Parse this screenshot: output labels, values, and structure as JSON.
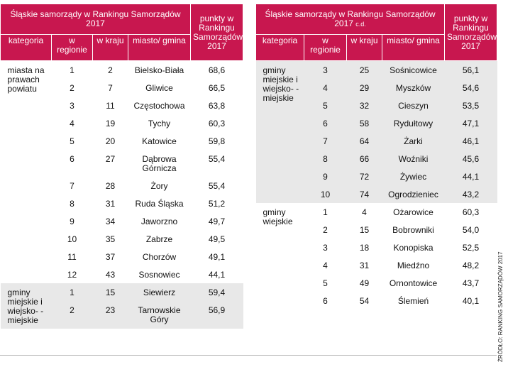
{
  "left": {
    "title": "Śląskie samorządy w Rankingu Samorządów 2017",
    "headers": [
      "kategoria",
      "w regionie",
      "w kraju",
      "miasto/ gmina",
      "punkty w Rankingu Samorządów 2017"
    ],
    "groups": [
      {
        "category": "miasta na prawach powiatu",
        "rows": [
          [
            "1",
            "2",
            "Bielsko-Biała",
            "68,6"
          ],
          [
            "2",
            "7",
            "Gliwice",
            "66,5"
          ],
          [
            "3",
            "11",
            "Częstochowa",
            "63,8"
          ],
          [
            "4",
            "19",
            "Tychy",
            "60,3"
          ],
          [
            "5",
            "20",
            "Katowice",
            "59,8"
          ],
          [
            "6",
            "27",
            "Dąbrowa Górnicza",
            "55,4"
          ],
          [
            "7",
            "28",
            "Żory",
            "55,4"
          ],
          [
            "8",
            "31",
            "Ruda Śląska",
            "51,2"
          ],
          [
            "9",
            "34",
            "Jaworzno",
            "49,7"
          ],
          [
            "10",
            "35",
            "Zabrze",
            "49,5"
          ],
          [
            "11",
            "37",
            "Chorzów",
            "49,1"
          ],
          [
            "12",
            "43",
            "Sosnowiec",
            "44,1"
          ]
        ]
      },
      {
        "category": "gminy miejskie i wiejsko- -miejskie",
        "rows": [
          [
            "1",
            "15",
            "Siewierz",
            "59,4"
          ],
          [
            "2",
            "23",
            "Tarnowskie Góry",
            "56,9"
          ]
        ]
      }
    ]
  },
  "right": {
    "title": "Śląskie samorządy w Rankingu Samorządów 2017",
    "title_note": "c.d.",
    "headers": [
      "kategoria",
      "w regionie",
      "w kraju",
      "miasto/ gmina",
      "punkty w Rankingu Samorządów 2017"
    ],
    "groups": [
      {
        "category": "gminy miejskie i wiejsko- -miejskie",
        "rows": [
          [
            "3",
            "25",
            "Sośnicowice",
            "56,1"
          ],
          [
            "4",
            "29",
            "Myszków",
            "54,6"
          ],
          [
            "5",
            "32",
            "Cieszyn",
            "53,5"
          ],
          [
            "6",
            "58",
            "Rydułtowy",
            "47,1"
          ],
          [
            "7",
            "64",
            "Żarki",
            "46,1"
          ],
          [
            "8",
            "66",
            "Woźniki",
            "45,6"
          ],
          [
            "9",
            "72",
            "Żywiec",
            "44,1"
          ],
          [
            "10",
            "74",
            "Ogrodzieniec",
            "43,2"
          ]
        ]
      },
      {
        "category": "gminy wiejskie",
        "rows": [
          [
            "1",
            "4",
            "Ożarowice",
            "60,3"
          ],
          [
            "2",
            "15",
            "Bobrowniki",
            "54,0"
          ],
          [
            "3",
            "18",
            "Konopiska",
            "52,5"
          ],
          [
            "4",
            "31",
            "Miedźno",
            "48,2"
          ],
          [
            "5",
            "49",
            "Ornontowice",
            "43,7"
          ],
          [
            "6",
            "54",
            "Ślemień",
            "40,1"
          ]
        ]
      }
    ]
  },
  "source": "ŹRÓDŁO: RANKING SAMORZĄDÓW 2017"
}
